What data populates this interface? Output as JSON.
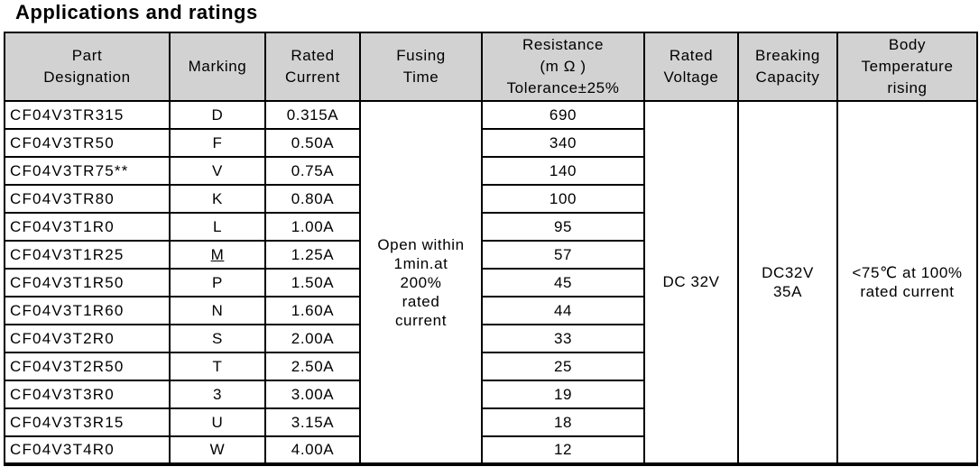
{
  "title": "Applications and ratings",
  "colors": {
    "header_background": "#d2d2d2",
    "border": "#000000",
    "page_background": "#ffffff",
    "text": "#000000"
  },
  "table": {
    "headers": {
      "part": "Part\nDesignation",
      "marking": "Marking",
      "current": "Rated\nCurrent",
      "fusing": "Fusing\nTime",
      "resistance": "Resistance\n(m Ω )\nTolerance±25%",
      "voltage": "Rated\nVoltage",
      "breaking": "Breaking\nCapacity",
      "body_temp": "Body\nTemperature\nrising"
    },
    "merged": {
      "fusing_time": "Open within\n1min.at\n200%\nrated\ncurrent",
      "rated_voltage": "DC 32V",
      "breaking_capacity": "DC32V\n35A",
      "body_temperature": "<75℃ at 100%\nrated current"
    },
    "rows": [
      {
        "part": "CF04V3TR315",
        "marking": "D",
        "current": "0.315A",
        "resistance": "690"
      },
      {
        "part": "CF04V3TR50",
        "marking": "F",
        "current": "0.50A",
        "resistance": "340"
      },
      {
        "part": "CF04V3TR75**",
        "marking": "V",
        "current": "0.75A",
        "resistance": "140"
      },
      {
        "part": "CF04V3TR80",
        "marking": "K",
        "current": "0.80A",
        "resistance": "100"
      },
      {
        "part": "CF04V3T1R0",
        "marking": "L",
        "current": "1.00A",
        "resistance": "95"
      },
      {
        "part": "CF04V3T1R25",
        "marking": "M",
        "current": "1.25A",
        "resistance": "57",
        "marking_underlined": true
      },
      {
        "part": "CF04V3T1R50",
        "marking": "P",
        "current": "1.50A",
        "resistance": "45"
      },
      {
        "part": "CF04V3T1R60",
        "marking": "N",
        "current": "1.60A",
        "resistance": "44"
      },
      {
        "part": "CF04V3T2R0",
        "marking": "S",
        "current": "2.00A",
        "resistance": "33"
      },
      {
        "part": "CF04V3T2R50",
        "marking": "T",
        "current": "2.50A",
        "resistance": "25"
      },
      {
        "part": "CF04V3T3R0",
        "marking": "3",
        "current": "3.00A",
        "resistance": "19"
      },
      {
        "part": "CF04V3T3R15",
        "marking": "U",
        "current": "3.15A",
        "resistance": "18"
      },
      {
        "part": "CF04V3T4R0",
        "marking": "W",
        "current": "4.00A",
        "resistance": "12"
      }
    ]
  }
}
